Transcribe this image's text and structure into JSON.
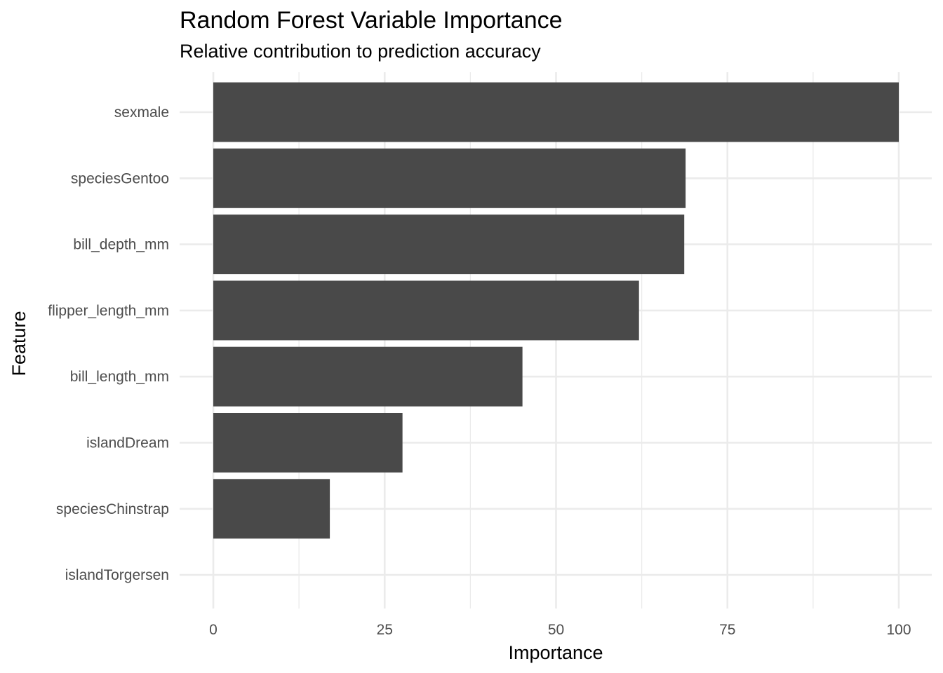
{
  "chart_data": {
    "type": "bar",
    "orientation": "horizontal",
    "title": "Random Forest Variable Importance",
    "subtitle": "Relative contribution to prediction accuracy",
    "xlabel": "Importance",
    "ylabel": "Feature",
    "categories": [
      "sexmale",
      "speciesGentoo",
      "bill_depth_mm",
      "flipper_length_mm",
      "bill_length_mm",
      "islandDream",
      "speciesChinstrap",
      "islandTorgersen"
    ],
    "values": [
      100,
      68.9,
      68.7,
      62.1,
      45.1,
      27.6,
      17.0,
      0
    ],
    "xlim": [
      -5,
      105
    ],
    "xticks": [
      0,
      25,
      50,
      75,
      100
    ],
    "xtick_labels": [
      "0",
      "25",
      "50",
      "75",
      "100"
    ],
    "grid": true,
    "legend": "none",
    "bar_color": "#494949",
    "grid_color": "#ebebeb"
  }
}
